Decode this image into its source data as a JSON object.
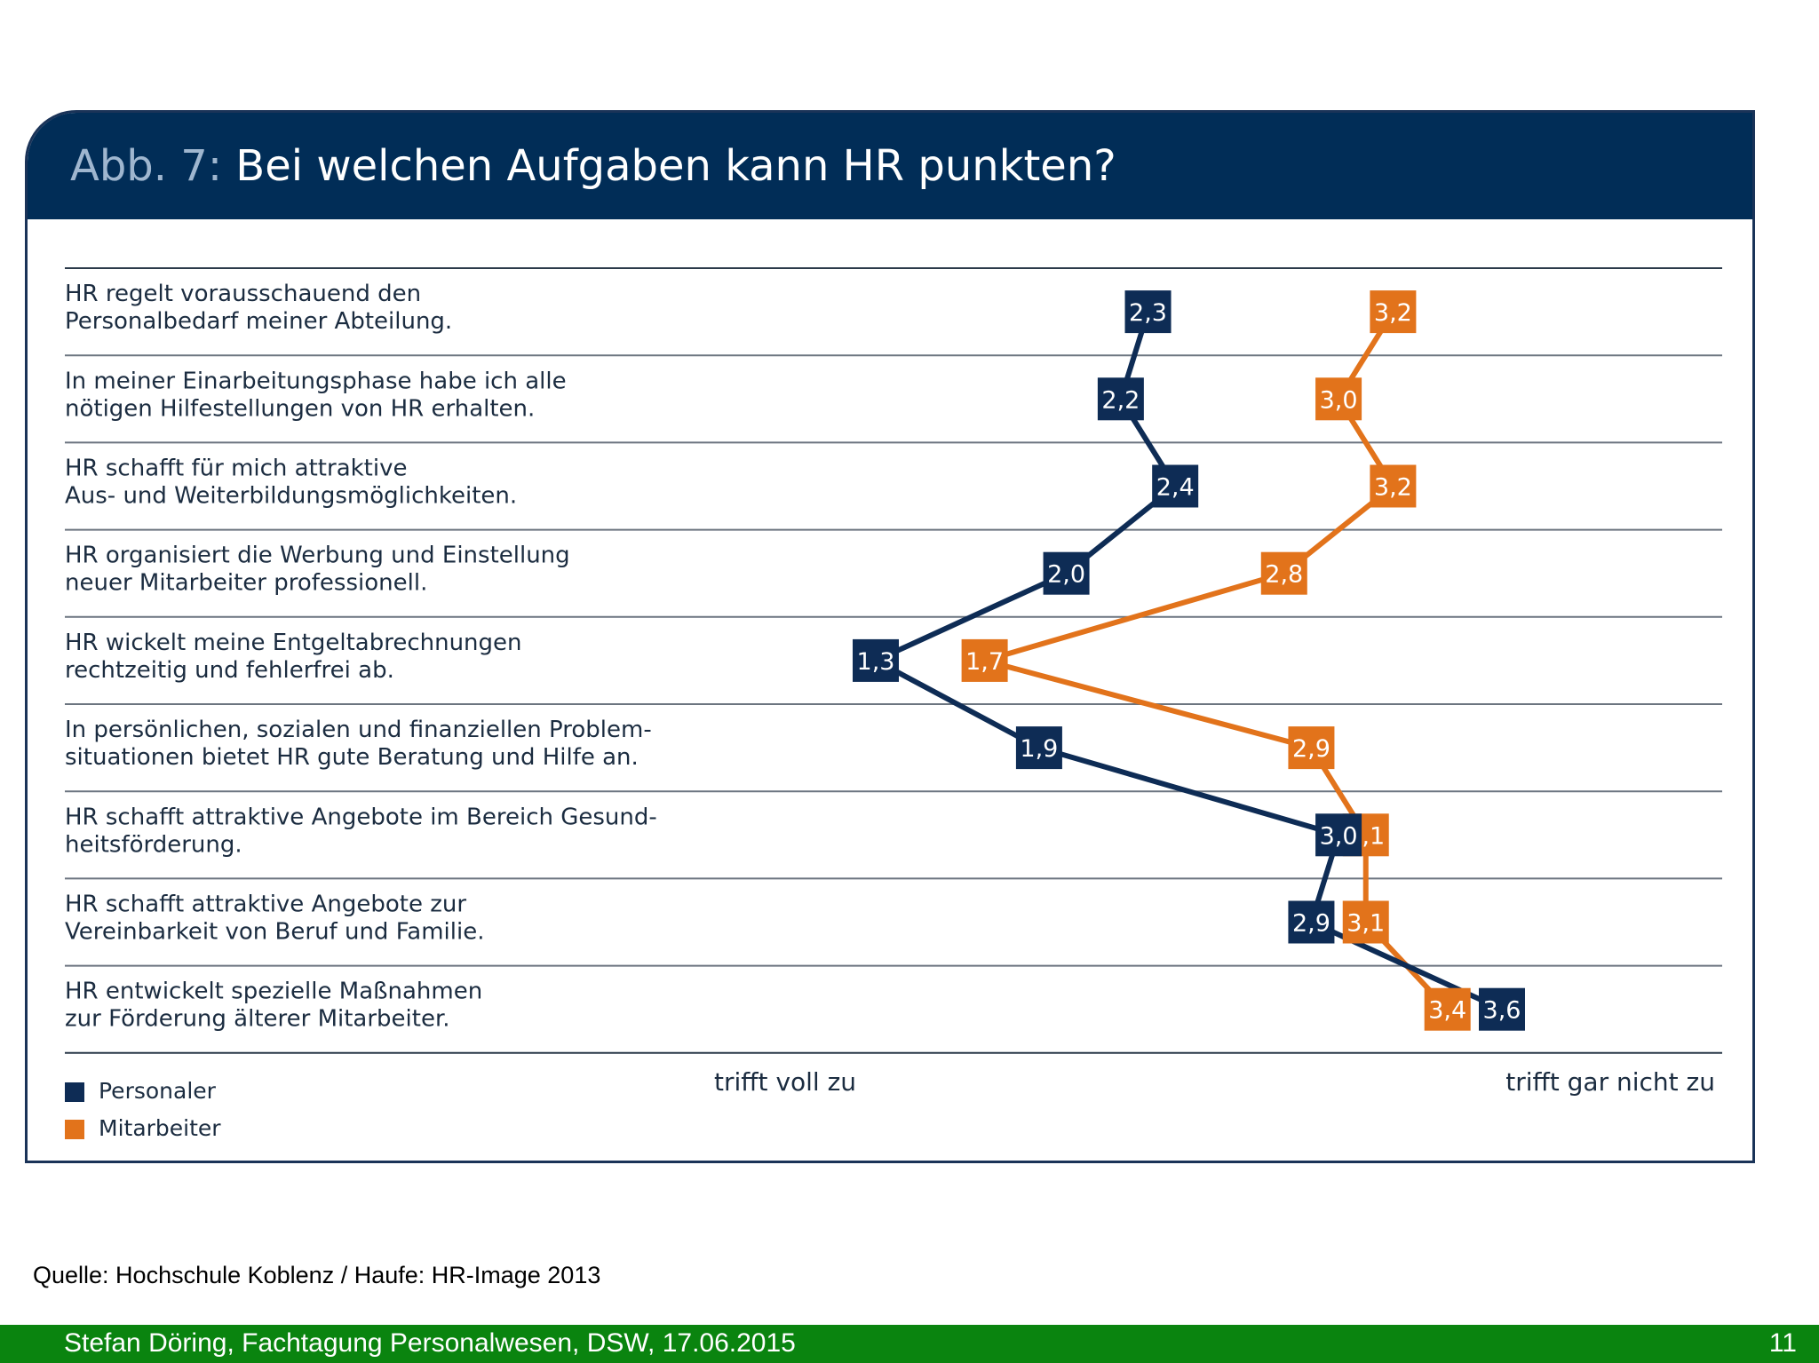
{
  "figure": {
    "title_prefix": "Abb. 7:",
    "title": "Bei welchen Aufgaben kann HR punkten?"
  },
  "chart_data": {
    "type": "line",
    "orientation": "horizontal",
    "categories": [
      [
        "HR regelt vorausschauend den",
        "Personalbedarf meiner Abteilung."
      ],
      [
        "In meiner Einarbeitungsphase habe ich alle",
        "nötigen Hilfestellungen von HR erhalten."
      ],
      [
        "HR schafft für mich attraktive",
        "Aus- und Weiterbildungsmöglichkeiten."
      ],
      [
        "HR organisiert die Werbung und Einstellung",
        "neuer Mitarbeiter professionell."
      ],
      [
        "HR wickelt meine Entgeltabrechnungen",
        "rechtzeitig und fehlerfrei ab."
      ],
      [
        "In persönlichen, sozialen und finanziellen Problem-",
        "situationen bietet HR gute Beratung und Hilfe an."
      ],
      [
        "HR schafft attraktive Angebote im Bereich Gesund-",
        "heitsförderung."
      ],
      [
        "HR schafft attraktive Angebote zur",
        "Vereinbarkeit von Beruf und Familie."
      ],
      [
        "HR entwickelt spezielle Maßnahmen",
        "zur Förderung älterer Mitarbeiter."
      ]
    ],
    "series": [
      {
        "name": "Personaler",
        "color": "#0e2c55",
        "values": [
          2.3,
          2.2,
          2.4,
          2.0,
          1.3,
          1.9,
          3.0,
          2.9,
          3.6
        ],
        "labels": [
          "2,3",
          "2,2",
          "2,4",
          "2,0",
          "1,3",
          "1,9",
          "3,0",
          "2,9",
          "3,6"
        ]
      },
      {
        "name": "Mitarbeiter",
        "color": "#e2731b",
        "values": [
          3.2,
          3.0,
          3.2,
          2.8,
          1.7,
          2.9,
          3.1,
          3.1,
          3.4
        ],
        "labels": [
          "3,2",
          "3,0",
          "3,2",
          "2,8",
          "1,7",
          "2,9",
          "3,1",
          "3,1",
          "3,4"
        ]
      }
    ],
    "xlim": [
      1,
      4
    ],
    "x_left_label": "trifft voll zu",
    "x_right_label": "trifft gar nicht zu",
    "grid": "horizontal row separators",
    "legend": "bottom-left"
  },
  "source": "Quelle: Hochschule Koblenz / Haufe: HR-Image 2013",
  "footer": {
    "text": "Stefan Döring, Fachtagung Personalwesen, DSW, 17.06.2015",
    "page": "11"
  }
}
